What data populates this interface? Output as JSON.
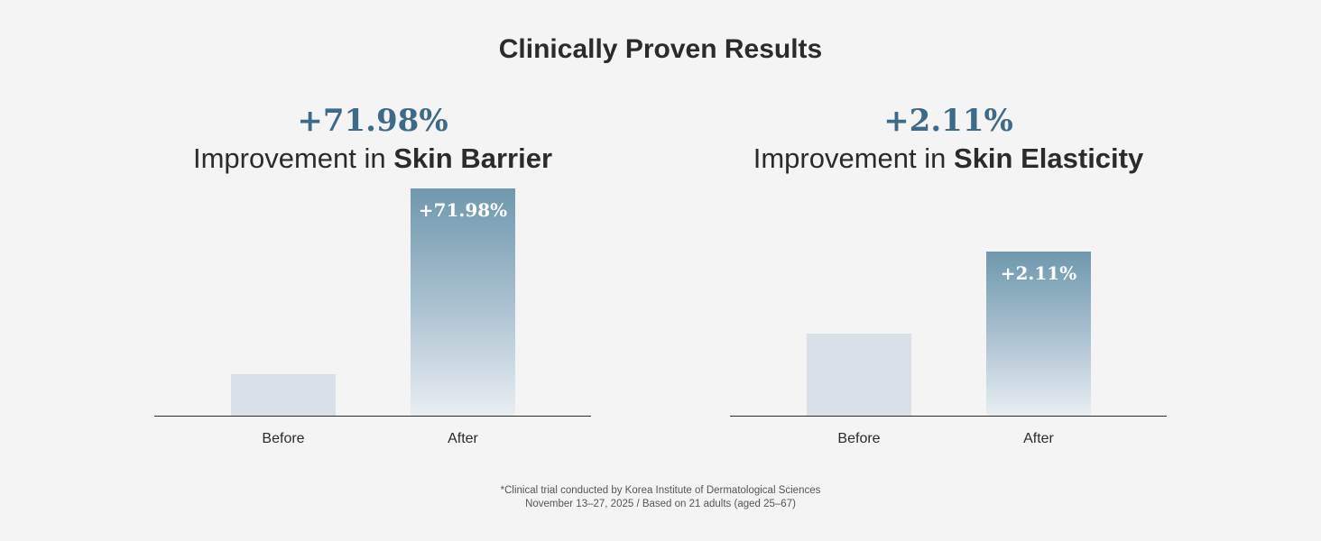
{
  "title": "Clinically Proven Results",
  "chart_data": [
    {
      "type": "bar",
      "headline_value": "+71.98%",
      "subtitle_prefix": "Improvement in ",
      "subtitle_bold": "Skin Barrier",
      "categories": [
        "Before",
        "After"
      ],
      "values": [
        1.0,
        1.7198
      ],
      "data_labels": [
        "",
        "+71.98%"
      ],
      "ylim": [
        0.84,
        1.75
      ],
      "grid": false,
      "colors": {
        "before": "#d9e0e7",
        "after_top": "#6f98ae",
        "after_bottom": "#e9eef2"
      }
    },
    {
      "type": "bar",
      "headline_value": "+2.11%",
      "subtitle_prefix": "Improvement in ",
      "subtitle_bold": "Skin Elasticity",
      "categories": [
        "Before",
        "After"
      ],
      "values": [
        1.0,
        1.0211
      ],
      "data_labels": [
        "",
        "+2.11%"
      ],
      "ylim": [
        0.979,
        1.0395
      ],
      "grid": false,
      "colors": {
        "before": "#d9e0e7",
        "after_top": "#6f98ae",
        "after_bottom": "#e9eef2"
      }
    }
  ],
  "footnote": {
    "line1": "*Clinical trial conducted by Korea Institute of Dermatological Sciences",
    "line2": "November 13–27, 2025 / Based on 21 adults (aged 25–67)"
  },
  "colors": {
    "background": "#f4f4f4",
    "accent": "#3d6a87",
    "text": "#2b2b2b"
  }
}
